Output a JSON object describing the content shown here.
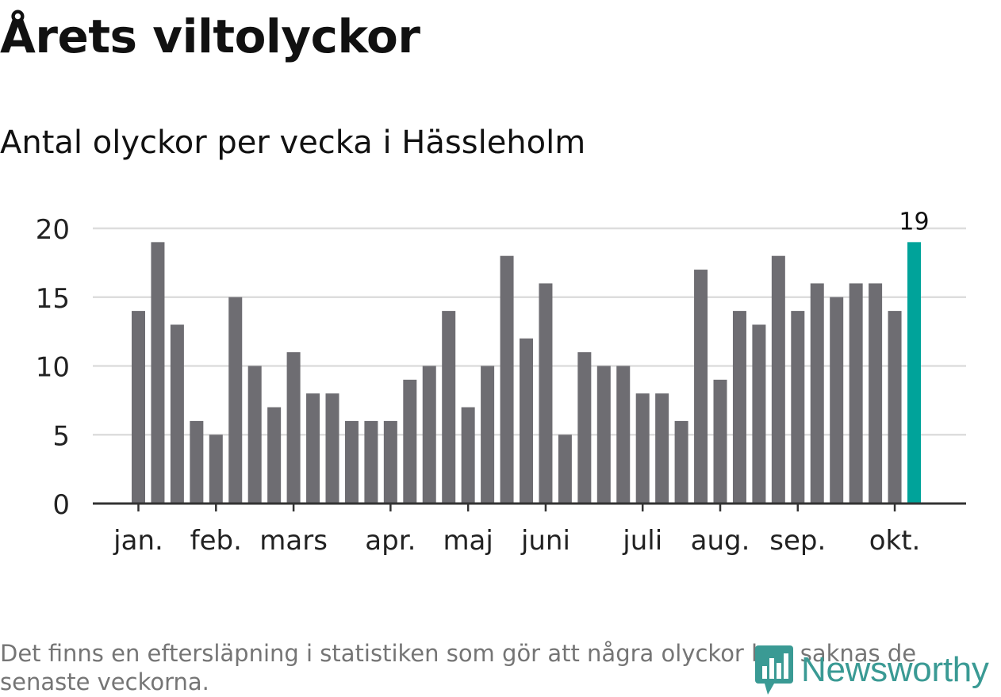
{
  "header": {
    "title": "Årets viltolyckor",
    "subtitle": "Antal olyckor per vecka i Hässleholm"
  },
  "footnote": "Det finns en eftersläpning i statistiken som gör att några olyckor kan saknas de senaste veckorna.",
  "brand": {
    "logo_text": "Newsworthy"
  },
  "colors": {
    "bar": "#6e6d72",
    "highlight": "#00a39a",
    "grid": "#dddddd",
    "axis": "#333333",
    "brand": "#3a9a94"
  },
  "chart_data": {
    "type": "bar",
    "title": "Årets viltolyckor",
    "subtitle": "Antal olyckor per vecka i Hässleholm",
    "xlabel": "",
    "ylabel": "",
    "ylim": [
      0,
      20
    ],
    "yticks": [
      "0",
      "5",
      "10",
      "15",
      "20"
    ],
    "grid": true,
    "series": [
      {
        "name": "Antal olyckor per vecka",
        "values": [
          14,
          19,
          13,
          6,
          5,
          15,
          10,
          7,
          11,
          8,
          8,
          6,
          6,
          6,
          9,
          10,
          14,
          7,
          10,
          18,
          12,
          16,
          5,
          11,
          10,
          10,
          8,
          8,
          6,
          17,
          9,
          14,
          13,
          18,
          14,
          16,
          15,
          16,
          16,
          14,
          19
        ]
      }
    ],
    "highlight_index": 40,
    "highlight_label": "19",
    "month_labels": [
      {
        "label": "jan.",
        "week_index": 0
      },
      {
        "label": "feb.",
        "week_index": 4
      },
      {
        "label": "mars",
        "week_index": 8
      },
      {
        "label": "apr.",
        "week_index": 13
      },
      {
        "label": "maj",
        "week_index": 17
      },
      {
        "label": "juni",
        "week_index": 21
      },
      {
        "label": "juli",
        "week_index": 26
      },
      {
        "label": "aug.",
        "week_index": 30
      },
      {
        "label": "sep.",
        "week_index": 34
      },
      {
        "label": "okt.",
        "week_index": 39
      }
    ]
  }
}
